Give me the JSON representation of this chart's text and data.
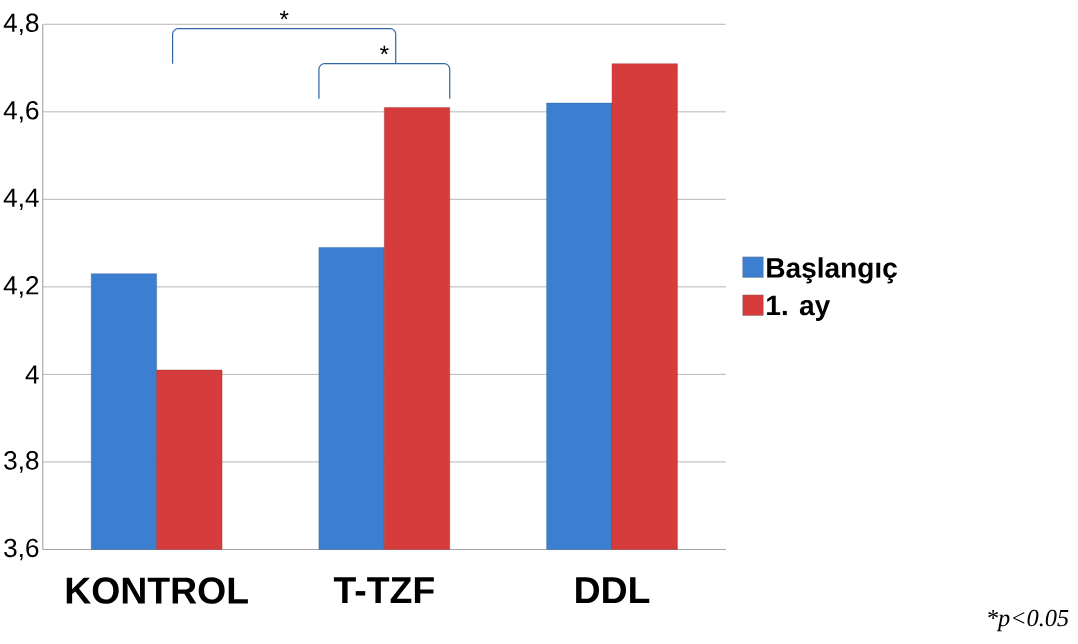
{
  "chart_data": {
    "type": "bar",
    "categories": [
      "KONTROL",
      "T-TZF",
      "DDL"
    ],
    "series": [
      {
        "name": "Başlangıç",
        "color": "#3c7fd0",
        "values": [
          4.23,
          4.29,
          4.62
        ]
      },
      {
        "name": "1. ay",
        "color": "#d63c3c",
        "values": [
          4.01,
          4.61,
          4.71
        ]
      }
    ],
    "ylim": [
      3.6,
      4.8
    ],
    "yticks": [
      {
        "value": 3.6,
        "label": "3,6"
      },
      {
        "value": 3.8,
        "label": "3,8"
      },
      4,
      {
        "value": 4.2,
        "label": "4,2"
      },
      {
        "value": 4.4,
        "label": "4,4"
      },
      {
        "value": 4.6,
        "label": "4,6"
      },
      {
        "value": 4.8,
        "label": "4,8"
      }
    ],
    "grid": "y",
    "legend": "right",
    "annotations": [
      "*",
      "*",
      "*p<0.05"
    ]
  }
}
